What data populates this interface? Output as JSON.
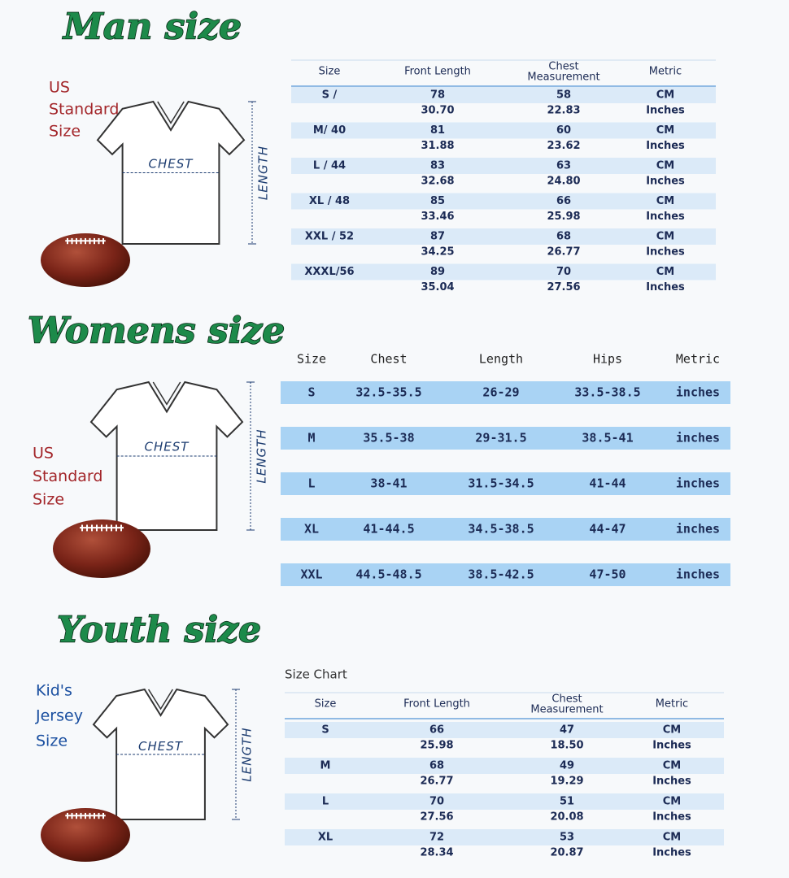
{
  "sections": [
    {
      "title": "Man size",
      "side_label": [
        "US",
        "Standard",
        "Size"
      ],
      "shirt_chest": "CHEST",
      "shirt_length": "LENGTH",
      "table": {
        "headers": [
          "Size",
          "Front Length",
          [
            "Chest",
            "Measurement"
          ],
          "Metric"
        ],
        "rows": [
          {
            "size": "S /",
            "cm": [
              "78",
              "58"
            ],
            "cm_unit": "CM",
            "inches": [
              "30.70",
              "22.83"
            ],
            "inch_unit": "Inches"
          },
          {
            "size": "M/ 40",
            "cm": [
              "81",
              "60"
            ],
            "cm_unit": "CM",
            "inches": [
              "31.88",
              "23.62"
            ],
            "inch_unit": "Inches"
          },
          {
            "size": "L / 44",
            "cm": [
              "83",
              "63"
            ],
            "cm_unit": "CM",
            "inches": [
              "32.68",
              "24.80"
            ],
            "inch_unit": "Inches"
          },
          {
            "size": "XL / 48",
            "cm": [
              "85",
              "66"
            ],
            "cm_unit": "CM",
            "inches": [
              "33.46",
              "25.98"
            ],
            "inch_unit": "Inches"
          },
          {
            "size": "XXL / 52",
            "cm": [
              "87",
              "68"
            ],
            "cm_unit": "CM",
            "inches": [
              "34.25",
              "26.77"
            ],
            "inch_unit": "Inches"
          },
          {
            "size": "XXXL/56",
            "cm": [
              "89",
              "70"
            ],
            "cm_unit": "CM",
            "inches": [
              "35.04",
              "27.56"
            ],
            "inch_unit": "Inches"
          }
        ]
      }
    },
    {
      "title": "Womens size",
      "side_label": [
        "US",
        "Standard",
        "Size"
      ],
      "shirt_chest": "CHEST",
      "shirt_length": "LENGTH",
      "table": {
        "headers": [
          "Size",
          "Chest",
          "Length",
          "Hips",
          "Metric"
        ],
        "rows": [
          [
            "S",
            "32.5-35.5",
            "26-29",
            "33.5-38.5",
            "inches"
          ],
          [
            "M",
            "35.5-38",
            "29-31.5",
            "38.5-41",
            "inches"
          ],
          [
            "L",
            "38-41",
            "31.5-34.5",
            "41-44",
            "inches"
          ],
          [
            "XL",
            "41-44.5",
            "34.5-38.5",
            "44-47",
            "inches"
          ],
          [
            "XXL",
            "44.5-48.5",
            "38.5-42.5",
            "47-50",
            "inches"
          ]
        ]
      }
    },
    {
      "title": "Youth size",
      "side_label": [
        "Kid's",
        "Jersey",
        "Size"
      ],
      "shirt_chest": "CHEST",
      "shirt_length": "LENGTH",
      "table": {
        "caption": "Size Chart",
        "headers": [
          "Size",
          "Front Length",
          [
            "Chest",
            "Measurement"
          ],
          "Metric"
        ],
        "rows": [
          {
            "size": "S",
            "cm": [
              "66",
              "47"
            ],
            "cm_unit": "CM",
            "inches": [
              "25.98",
              "18.50"
            ],
            "inch_unit": "Inches"
          },
          {
            "size": "M",
            "cm": [
              "68",
              "49"
            ],
            "cm_unit": "CM",
            "inches": [
              "26.77",
              "19.29"
            ],
            "inch_unit": "Inches"
          },
          {
            "size": "L",
            "cm": [
              "70",
              "51"
            ],
            "cm_unit": "CM",
            "inches": [
              "27.56",
              "20.08"
            ],
            "inch_unit": "Inches"
          },
          {
            "size": "XL",
            "cm": [
              "72",
              "53"
            ],
            "cm_unit": "CM",
            "inches": [
              "28.34",
              "20.87"
            ],
            "inch_unit": "Inches"
          }
        ]
      }
    }
  ]
}
